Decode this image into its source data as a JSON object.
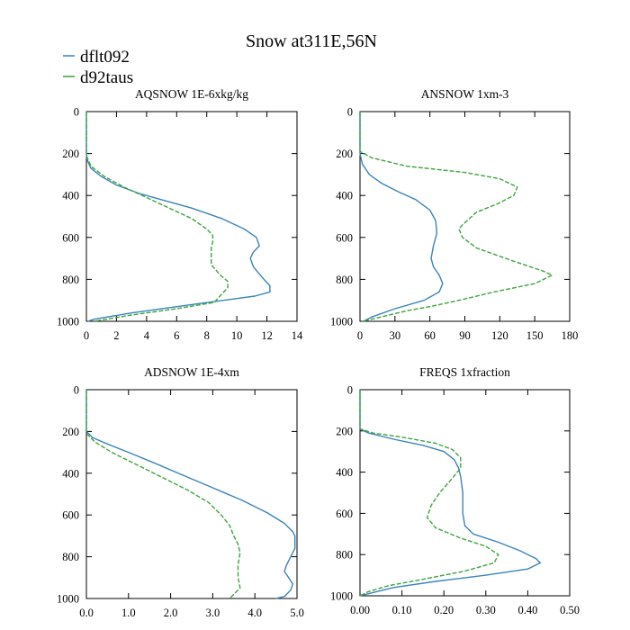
{
  "title": "Snow at311E,56N",
  "legend": [
    {
      "name": "dflt092",
      "color": "#3a84b9",
      "dash": "solid"
    },
    {
      "name": "d92taus",
      "color": "#3fa33f",
      "dash": "dashed"
    }
  ],
  "chart_data": [
    {
      "type": "line",
      "title": "AQSNOW  1E-6xkg/kg",
      "xlim": [
        0,
        14
      ],
      "xticks": [
        0,
        2,
        4,
        6,
        8,
        10,
        12,
        14
      ],
      "xtick_labels": [
        "0",
        "2",
        "4",
        "6",
        "8",
        "10",
        "12",
        "14"
      ],
      "ylim": [
        0,
        1000
      ],
      "yticks": [
        0,
        200,
        400,
        600,
        800,
        1000
      ],
      "ytick_labels": [
        "0",
        "200",
        "400",
        "600",
        "800",
        "1000"
      ],
      "series": [
        {
          "name": "dflt092",
          "points": [
            [
              0,
              0
            ],
            [
              0,
              200
            ],
            [
              0.05,
              230
            ],
            [
              0.3,
              270
            ],
            [
              1,
              310
            ],
            [
              2,
              350
            ],
            [
              3.5,
              390
            ],
            [
              5,
              420
            ],
            [
              7,
              460
            ],
            [
              9,
              510
            ],
            [
              10.5,
              560
            ],
            [
              11.3,
              600
            ],
            [
              11.5,
              640
            ],
            [
              11.1,
              670
            ],
            [
              10.9,
              700
            ],
            [
              11.1,
              740
            ],
            [
              11.8,
              800
            ],
            [
              12.2,
              830
            ],
            [
              12.2,
              860
            ],
            [
              11.2,
              880
            ],
            [
              7,
              920
            ],
            [
              3,
              960
            ],
            [
              0.5,
              990
            ],
            [
              0.1,
              1000
            ]
          ]
        },
        {
          "name": "d92taus",
          "points": [
            [
              0,
              0
            ],
            [
              0,
              210
            ],
            [
              0.3,
              260
            ],
            [
              1.2,
              310
            ],
            [
              2.5,
              360
            ],
            [
              4,
              410
            ],
            [
              5.5,
              460
            ],
            [
              7,
              510
            ],
            [
              8,
              560
            ],
            [
              8.4,
              590
            ],
            [
              8.4,
              620
            ],
            [
              8.3,
              650
            ],
            [
              8.3,
              690
            ],
            [
              8.3,
              730
            ],
            [
              8.9,
              780
            ],
            [
              9.4,
              810
            ],
            [
              9.4,
              840
            ],
            [
              9,
              870
            ],
            [
              8.5,
              910
            ],
            [
              6,
              940
            ],
            [
              3,
              970
            ],
            [
              0.5,
              1000
            ]
          ]
        }
      ]
    },
    {
      "type": "line",
      "title": "ANSNOW  1xm-3",
      "xlim": [
        0,
        180
      ],
      "xticks": [
        0,
        30,
        60,
        90,
        120,
        150,
        180
      ],
      "xtick_labels": [
        "0",
        "30",
        "60",
        "90",
        "120",
        "150",
        "180"
      ],
      "ylim": [
        0,
        1000
      ],
      "yticks": [
        0,
        200,
        400,
        600,
        800,
        1000
      ],
      "ytick_labels": [
        "0",
        "200",
        "400",
        "600",
        "800",
        "1000"
      ],
      "series": [
        {
          "name": "dflt092",
          "points": [
            [
              0,
              0
            ],
            [
              0,
              200
            ],
            [
              2,
              250
            ],
            [
              8,
              300
            ],
            [
              18,
              340
            ],
            [
              32,
              380
            ],
            [
              48,
              420
            ],
            [
              60,
              470
            ],
            [
              65,
              520
            ],
            [
              66,
              580
            ],
            [
              63,
              640
            ],
            [
              61,
              700
            ],
            [
              63,
              740
            ],
            [
              68,
              780
            ],
            [
              71,
              820
            ],
            [
              68,
              860
            ],
            [
              55,
              900
            ],
            [
              30,
              940
            ],
            [
              10,
              980
            ],
            [
              3,
              1000
            ]
          ]
        },
        {
          "name": "d92taus",
          "points": [
            [
              0,
              0
            ],
            [
              0,
              190
            ],
            [
              10,
              220
            ],
            [
              40,
              260
            ],
            [
              90,
              290
            ],
            [
              120,
              320
            ],
            [
              135,
              360
            ],
            [
              132,
              400
            ],
            [
              118,
              440
            ],
            [
              100,
              480
            ],
            [
              88,
              540
            ],
            [
              85,
              560
            ],
            [
              88,
              600
            ],
            [
              100,
              650
            ],
            [
              130,
              710
            ],
            [
              157,
              760
            ],
            [
              165,
              780
            ],
            [
              150,
              820
            ],
            [
              115,
              860
            ],
            [
              85,
              900
            ],
            [
              60,
              930
            ],
            [
              40,
              950
            ],
            [
              10,
              990
            ],
            [
              2,
              1000
            ]
          ]
        }
      ]
    },
    {
      "type": "line",
      "title": "ADSNOW  1E-4xm",
      "xlim": [
        0,
        5
      ],
      "xticks": [
        0,
        1,
        2,
        3,
        4,
        5
      ],
      "xtick_labels": [
        "0.0",
        "1.0",
        "2.0",
        "3.0",
        "4.0",
        "5.0"
      ],
      "ylim": [
        0,
        1000
      ],
      "yticks": [
        0,
        200,
        400,
        600,
        800,
        1000
      ],
      "ytick_labels": [
        "0",
        "200",
        "400",
        "600",
        "800",
        "1000"
      ],
      "series": [
        {
          "name": "dflt092",
          "points": [
            [
              0,
              0
            ],
            [
              0,
              200
            ],
            [
              0.15,
              230
            ],
            [
              0.5,
              260
            ],
            [
              1.0,
              300
            ],
            [
              1.6,
              350
            ],
            [
              2.3,
              410
            ],
            [
              3.0,
              470
            ],
            [
              3.7,
              530
            ],
            [
              4.3,
              590
            ],
            [
              4.7,
              640
            ],
            [
              4.9,
              680
            ],
            [
              4.95,
              700
            ],
            [
              4.95,
              760
            ],
            [
              4.85,
              800
            ],
            [
              4.75,
              840
            ],
            [
              4.7,
              870
            ],
            [
              4.8,
              900
            ],
            [
              4.9,
              930
            ],
            [
              4.85,
              960
            ],
            [
              4.7,
              990
            ],
            [
              4.5,
              1000
            ]
          ]
        },
        {
          "name": "d92taus",
          "points": [
            [
              0,
              0
            ],
            [
              0,
              210
            ],
            [
              0.2,
              250
            ],
            [
              0.6,
              300
            ],
            [
              1.2,
              360
            ],
            [
              1.8,
              420
            ],
            [
              2.4,
              480
            ],
            [
              2.9,
              540
            ],
            [
              3.2,
              600
            ],
            [
              3.4,
              650
            ],
            [
              3.5,
              700
            ],
            [
              3.6,
              740
            ],
            [
              3.65,
              780
            ],
            [
              3.6,
              840
            ],
            [
              3.6,
              900
            ],
            [
              3.65,
              950
            ],
            [
              3.4,
              1000
            ]
          ]
        }
      ]
    },
    {
      "type": "line",
      "title": "FREQS  1xfraction",
      "xlim": [
        0,
        0.5
      ],
      "xticks": [
        0,
        0.1,
        0.2,
        0.3,
        0.4,
        0.5
      ],
      "xtick_labels": [
        "0.00",
        "0.10",
        "0.20",
        "0.30",
        "0.40",
        "0.50"
      ],
      "ylim": [
        0,
        1000
      ],
      "yticks": [
        0,
        200,
        400,
        600,
        800,
        1000
      ],
      "ytick_labels": [
        "0",
        "200",
        "400",
        "600",
        "800",
        "1000"
      ],
      "series": [
        {
          "name": "dflt092",
          "points": [
            [
              0,
              0
            ],
            [
              0,
              190
            ],
            [
              0.02,
              210
            ],
            [
              0.08,
              240
            ],
            [
              0.15,
              270
            ],
            [
              0.2,
              300
            ],
            [
              0.225,
              340
            ],
            [
              0.235,
              380
            ],
            [
              0.24,
              420
            ],
            [
              0.245,
              500
            ],
            [
              0.245,
              600
            ],
            [
              0.25,
              660
            ],
            [
              0.27,
              700
            ],
            [
              0.33,
              740
            ],
            [
              0.38,
              780
            ],
            [
              0.42,
              820
            ],
            [
              0.43,
              840
            ],
            [
              0.4,
              870
            ],
            [
              0.3,
              900
            ],
            [
              0.18,
              930
            ],
            [
              0.08,
              960
            ],
            [
              0.02,
              990
            ],
            [
              0,
              1000
            ]
          ]
        },
        {
          "name": "d92taus",
          "points": [
            [
              0,
              0
            ],
            [
              0,
              190
            ],
            [
              0.03,
              210
            ],
            [
              0.1,
              230
            ],
            [
              0.18,
              260
            ],
            [
              0.22,
              290
            ],
            [
              0.24,
              330
            ],
            [
              0.24,
              380
            ],
            [
              0.22,
              430
            ],
            [
              0.19,
              500
            ],
            [
              0.17,
              560
            ],
            [
              0.16,
              620
            ],
            [
              0.18,
              670
            ],
            [
              0.24,
              720
            ],
            [
              0.3,
              760
            ],
            [
              0.33,
              800
            ],
            [
              0.32,
              840
            ],
            [
              0.25,
              880
            ],
            [
              0.15,
              920
            ],
            [
              0.07,
              950
            ],
            [
              0.02,
              980
            ],
            [
              0,
              1000
            ]
          ]
        }
      ]
    }
  ]
}
